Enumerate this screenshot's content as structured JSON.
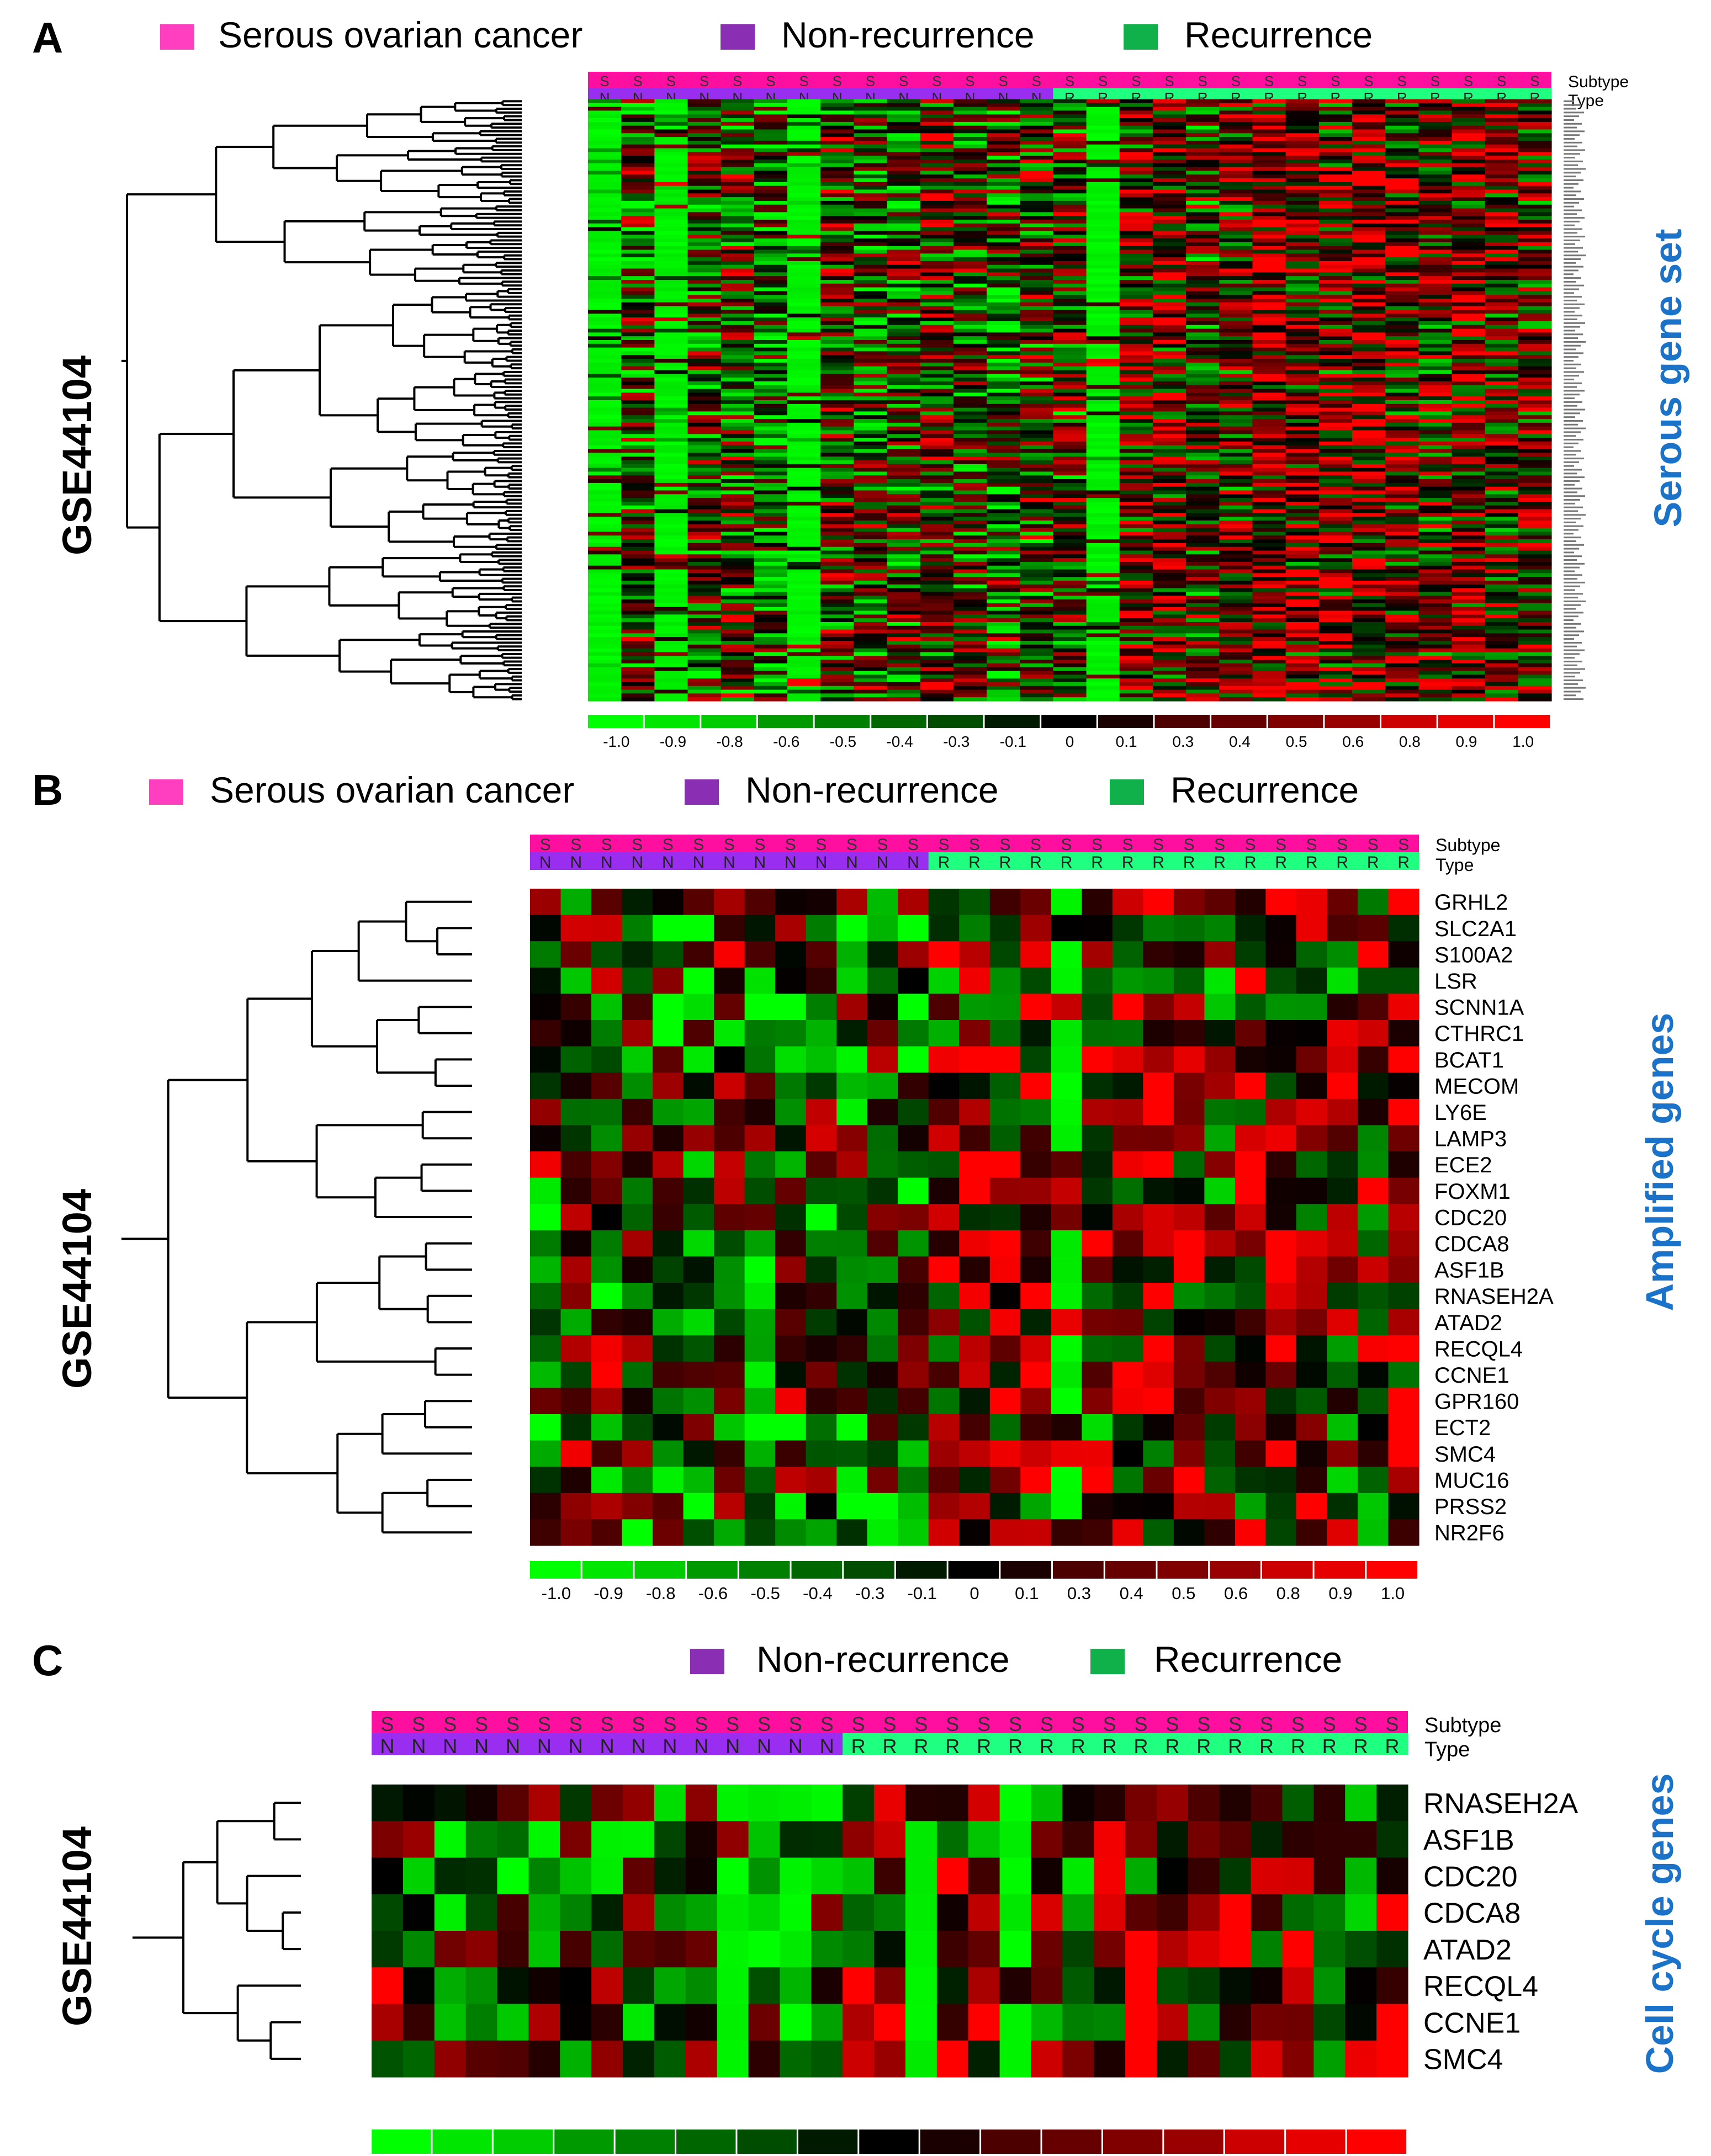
{
  "figure": {
    "colors": {
      "serous": "#ff3fc0",
      "nonrec": "#8a2fb4",
      "rec": "#10b04a",
      "subtype_bar": "#ff0fa0",
      "type_nonrec": "#9a2ef0",
      "type_rec": "#1fff80",
      "heat_low": "#00ff00",
      "heat_mid": "#000000",
      "heat_high": "#ff0000",
      "side_title": "#1a73c8"
    },
    "colorbar_ticks": [
      "-1.0",
      "-0.9",
      "-0.8",
      "-0.6",
      "-0.5",
      "-0.4",
      "-0.3",
      "-0.1",
      "0",
      "0.1",
      "0.3",
      "0.4",
      "0.5",
      "0.6",
      "0.8",
      "0.9",
      "1.0"
    ],
    "track_labels": [
      "Subtype",
      "Type"
    ]
  },
  "chart_data": [
    {
      "type": "heatmap",
      "panel": "A",
      "legend": [
        "Serous ovarian cancer",
        "Non-recurrence",
        "Recurrence"
      ],
      "dataset_label": "GSE44104",
      "side_title": "Serous gene set",
      "subtype_codes": [
        "S",
        "S",
        "S",
        "S",
        "S",
        "S",
        "S",
        "S",
        "S",
        "S",
        "S",
        "S",
        "S",
        "S",
        "S",
        "S",
        "S",
        "S",
        "S",
        "S",
        "S",
        "S",
        "S",
        "S",
        "S",
        "S",
        "S",
        "S",
        "S"
      ],
      "type_codes": [
        "N",
        "N",
        "N",
        "N",
        "N",
        "N",
        "N",
        "N",
        "N",
        "N",
        "N",
        "N",
        "N",
        "N",
        "R",
        "R",
        "R",
        "R",
        "R",
        "R",
        "R",
        "R",
        "R",
        "R",
        "R",
        "R",
        "R",
        "R",
        "R"
      ],
      "n_rows": 160,
      "value_range": [
        -1,
        1
      ],
      "note": "Row gene labels are printed too small to be legible; cell values are qualitatively approximated."
    },
    {
      "type": "heatmap",
      "panel": "B",
      "legend": [
        "Serous ovarian cancer",
        "Non-recurrence",
        "Recurrence"
      ],
      "dataset_label": "GSE44104",
      "side_title": "Amplified genes",
      "subtype_codes": [
        "S",
        "S",
        "S",
        "S",
        "S",
        "S",
        "S",
        "S",
        "S",
        "S",
        "S",
        "S",
        "S",
        "S",
        "S",
        "S",
        "S",
        "S",
        "S",
        "S",
        "S",
        "S",
        "S",
        "S",
        "S",
        "S",
        "S",
        "S",
        "S"
      ],
      "type_codes": [
        "N",
        "N",
        "N",
        "N",
        "N",
        "N",
        "N",
        "N",
        "N",
        "N",
        "N",
        "N",
        "N",
        "R",
        "R",
        "R",
        "R",
        "R",
        "R",
        "R",
        "R",
        "R",
        "R",
        "R",
        "R",
        "R",
        "R",
        "R",
        "R"
      ],
      "rows": [
        "GRHL2",
        "SLC2A1",
        "S100A2",
        "LSR",
        "SCNN1A",
        "CTHRC1",
        "BCAT1",
        "MECOM",
        "LY6E",
        "LAMP3",
        "ECE2",
        "FOXM1",
        "CDC20",
        "CDCA8",
        "ASF1B",
        "RNASEH2A",
        "ATAD2",
        "RECQL4",
        "CCNE1",
        "GPR160",
        "ECT2",
        "SMC4",
        "MUC16",
        "PRSS2",
        "NR2F6"
      ],
      "value_range": [
        -1,
        1
      ],
      "note": "Cell values are qualitatively approximated from colour."
    },
    {
      "type": "heatmap",
      "panel": "C",
      "legend": [
        "Non-recurrence",
        "Recurrence"
      ],
      "dataset_label": "GSE44104",
      "side_title": "Cell cycle genes",
      "subtype_codes": [
        "S",
        "S",
        "S",
        "S",
        "S",
        "S",
        "S",
        "S",
        "S",
        "S",
        "S",
        "S",
        "S",
        "S",
        "S",
        "S",
        "S",
        "S",
        "S",
        "S",
        "S",
        "S",
        "S",
        "S",
        "S",
        "S",
        "S",
        "S",
        "S",
        "S",
        "S",
        "S",
        "S"
      ],
      "type_codes": [
        "N",
        "N",
        "N",
        "N",
        "N",
        "N",
        "N",
        "N",
        "N",
        "N",
        "N",
        "N",
        "N",
        "N",
        "N",
        "R",
        "R",
        "R",
        "R",
        "R",
        "R",
        "R",
        "R",
        "R",
        "R",
        "R",
        "R",
        "R",
        "R",
        "R",
        "R",
        "R",
        "R"
      ],
      "rows": [
        "RNASEH2A",
        "ASF1B",
        "CDC20",
        "CDCA8",
        "ATAD2",
        "RECQL4",
        "CCNE1",
        "SMC4"
      ],
      "value_range": [
        -1,
        1
      ],
      "note": "Cell values are qualitatively approximated from colour."
    }
  ]
}
